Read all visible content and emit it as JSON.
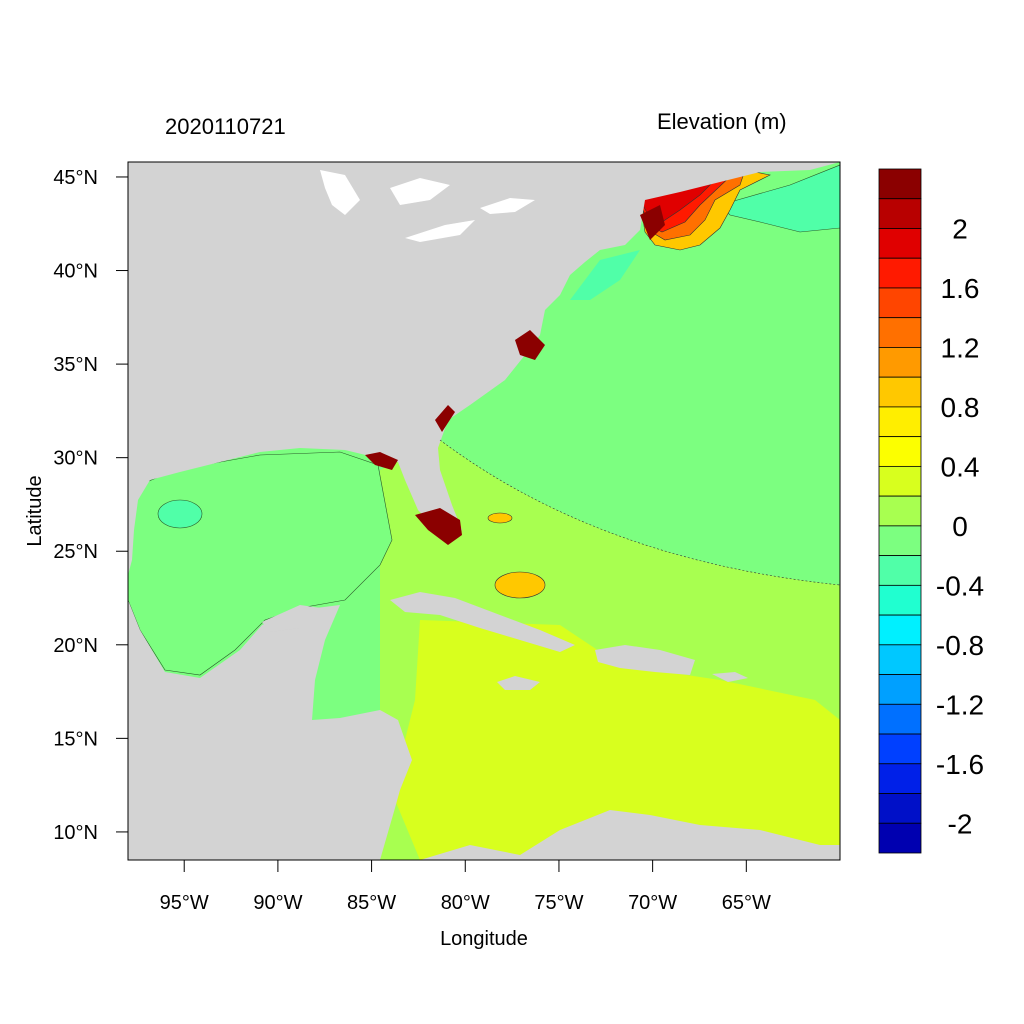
{
  "header": {
    "date_stamp": "2020110721",
    "variable_title": "Elevation (m)"
  },
  "axes": {
    "x_label": "Longitude",
    "y_label": "Latitude",
    "x_ticks": [
      {
        "value": -95,
        "label": "95°W"
      },
      {
        "value": -90,
        "label": "90°W"
      },
      {
        "value": -85,
        "label": "85°W"
      },
      {
        "value": -80,
        "label": "80°W"
      },
      {
        "value": -75,
        "label": "75°W"
      },
      {
        "value": -70,
        "label": "70°W"
      },
      {
        "value": -65,
        "label": "65°W"
      }
    ],
    "y_ticks": [
      {
        "value": 10,
        "label": "10°N"
      },
      {
        "value": 15,
        "label": "15°N"
      },
      {
        "value": 20,
        "label": "20°N"
      },
      {
        "value": 25,
        "label": "25°N"
      },
      {
        "value": 30,
        "label": "30°N"
      },
      {
        "value": 35,
        "label": "35°N"
      },
      {
        "value": 40,
        "label": "40°N"
      },
      {
        "value": 45,
        "label": "45°N"
      }
    ]
  },
  "colorbar": {
    "levels": [
      {
        "color": "#8b0000",
        "label": ""
      },
      {
        "color": "#b80000",
        "label": "2"
      },
      {
        "color": "#e00000",
        "label": ""
      },
      {
        "color": "#ff1a00",
        "label": "1.6"
      },
      {
        "color": "#ff4500",
        "label": ""
      },
      {
        "color": "#ff7000",
        "label": "1.2"
      },
      {
        "color": "#ff9a00",
        "label": ""
      },
      {
        "color": "#ffc800",
        "label": "0.8"
      },
      {
        "color": "#ffee00",
        "label": ""
      },
      {
        "color": "#fcff00",
        "label": "0.4"
      },
      {
        "color": "#d8ff1e",
        "label": ""
      },
      {
        "color": "#a8ff50",
        "label": "0"
      },
      {
        "color": "#7cff80",
        "label": ""
      },
      {
        "color": "#50ffa8",
        "label": "-0.4"
      },
      {
        "color": "#20ffd0",
        "label": ""
      },
      {
        "color": "#00f0ff",
        "label": "-0.8"
      },
      {
        "color": "#00c8ff",
        "label": ""
      },
      {
        "color": "#00a0ff",
        "label": "-1.2"
      },
      {
        "color": "#0070ff",
        "label": ""
      },
      {
        "color": "#0040ff",
        "label": "-1.6"
      },
      {
        "color": "#0020e8",
        "label": ""
      },
      {
        "color": "#0010c8",
        "label": "-2"
      },
      {
        "color": "#0000b0",
        "label": ""
      }
    ]
  },
  "colors": {
    "land": "#d3d3d3",
    "ocean_base": "#7cff80",
    "gulf": "#7cff80",
    "caribbean": "#d8ff1e",
    "bahamas_band": "#a8ff50",
    "gulf_low": "#50ffa8",
    "surge_high": "#8b0000"
  }
}
